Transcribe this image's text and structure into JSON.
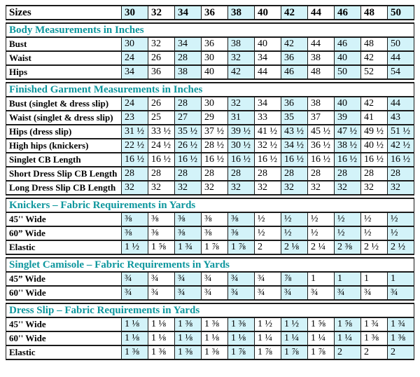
{
  "colors": {
    "accent_teal": "#0d969d",
    "cell_cyan": "#d3f3f9",
    "border": "#1b1b1b",
    "text": "#000000",
    "background": "#ffffff"
  },
  "size_chart": {
    "header": {
      "label": "Sizes",
      "sizes": [
        "30",
        "32",
        "34",
        "36",
        "38",
        "40",
        "42",
        "44",
        "46",
        "48",
        "50"
      ]
    },
    "sections": [
      {
        "title": "Body Measurements in Inches",
        "rows": [
          {
            "label": "Bust",
            "values": [
              "30",
              "32",
              "34",
              "36",
              "38",
              "40",
              "42",
              "44",
              "46",
              "48",
              "50"
            ]
          },
          {
            "label": "Waist",
            "values": [
              "24",
              "26",
              "28",
              "30",
              "32",
              "34",
              "36",
              "38",
              "40",
              "42",
              "44"
            ]
          },
          {
            "label": "Hips",
            "values": [
              "34",
              "36",
              "38",
              "40",
              "42",
              "44",
              "46",
              "48",
              "50",
              "52",
              "54"
            ]
          }
        ]
      },
      {
        "title": "Finished Garment Measurements in Inches",
        "rows": [
          {
            "label": "Bust (singlet & dress slip)",
            "values": [
              "24",
              "26",
              "28",
              "30",
              "32",
              "34",
              "36",
              "38",
              "40",
              "42",
              "44"
            ]
          },
          {
            "label": "Waist (singlet & dress slip)",
            "values": [
              "23",
              "25",
              "27",
              "29",
              "31",
              "33",
              "35",
              "37",
              "39",
              "41",
              "43"
            ]
          },
          {
            "label": "Hips (dress slip)",
            "values": [
              "31 ½",
              "33 ½",
              "35 ½",
              "37 ½",
              "39 ½",
              "41 ½",
              "43 ½",
              "45 ½",
              "47 ½",
              "49 ½",
              "51 ½"
            ]
          },
          {
            "label": "High hips (knickers)",
            "values": [
              "22 ½",
              "24 ½",
              "26 ½",
              "28 ½",
              "30 ½",
              "32 ½",
              "34 ½",
              "36 ½",
              "38 ½",
              "40 ½",
              "42 ½"
            ]
          },
          {
            "label": "Singlet CB Length",
            "values": [
              "16 ½",
              "16 ½",
              "16 ½",
              "16 ½",
              "16 ½",
              "16 ½",
              "16 ½",
              "16 ½",
              "16 ½",
              "16 ½",
              "16 ½"
            ]
          },
          {
            "label": "Short Dress Slip CB Length",
            "values": [
              "28",
              "28",
              "28",
              "28",
              "28",
              "28",
              "28",
              "28",
              "28",
              "28",
              "28"
            ]
          },
          {
            "label": "Long Dress Slip CB Length",
            "values": [
              "32",
              "32",
              "32",
              "32",
              "32",
              "32",
              "32",
              "32",
              "32",
              "32",
              "32"
            ]
          }
        ]
      },
      {
        "title": "Knickers – Fabric Requirements in Yards",
        "rows": [
          {
            "label": "45'' Wide",
            "values": [
              "⅜",
              "⅜",
              "⅜",
              "⅜",
              "⅜",
              "½",
              "½",
              "½",
              "½",
              "½",
              "½"
            ]
          },
          {
            "label": "60” Wide",
            "values": [
              "⅜",
              "⅜",
              "⅜",
              "⅜",
              "⅜",
              "½",
              "½",
              "½",
              "½",
              "½",
              "½"
            ]
          },
          {
            "label": "Elastic",
            "values": [
              "1 ½",
              "1 ⅝",
              "1 ¾",
              "1 ⅞",
              "1 ⅞",
              "2",
              "2 ⅛",
              "2 ¼",
              "2 ⅜",
              "2 ½",
              "2 ½"
            ]
          }
        ]
      },
      {
        "title": "Singlet Camisole – Fabric Requirements in Yards",
        "rows": [
          {
            "label": "45” Wide",
            "values": [
              "¾",
              "¾",
              "¾",
              "¾",
              "¾",
              "¾",
              "⅞",
              "1",
              "1",
              "1",
              "1"
            ]
          },
          {
            "label": "60'' Wide",
            "values": [
              "¾",
              "¾",
              "¾",
              "¾",
              "¾",
              "¾",
              "¾",
              "¾",
              "¾",
              "¾",
              "¾"
            ]
          }
        ]
      },
      {
        "title": "Dress Slip – Fabric Requirements in Yards",
        "rows": [
          {
            "label": "45'' Wide",
            "values": [
              "1 ⅛",
              "1 ⅛",
              "1 ⅜",
              "1 ⅜",
              "1 ⅜",
              "1 ½",
              "1 ½",
              "1 ⅝",
              "1 ⅝",
              "1 ¾",
              "1 ¾"
            ]
          },
          {
            "label": "60'' Wide",
            "values": [
              "1 ⅛",
              "1 ⅛",
              "1 ⅛",
              "1 ⅛",
              "1 ⅛",
              "1 ¼",
              "1 ¼",
              "1 ¼",
              "1 ¼",
              "1 ⅜",
              "1 ⅜"
            ]
          },
          {
            "label": "Elastic",
            "values": [
              "1 ⅜",
              "1 ⅜",
              "1 ⅜",
              "1 ⅜",
              "1 ⅞",
              "1 ⅞",
              "1 ⅞",
              "1 ⅞",
              "2",
              "2",
              "2"
            ]
          }
        ]
      }
    ]
  }
}
